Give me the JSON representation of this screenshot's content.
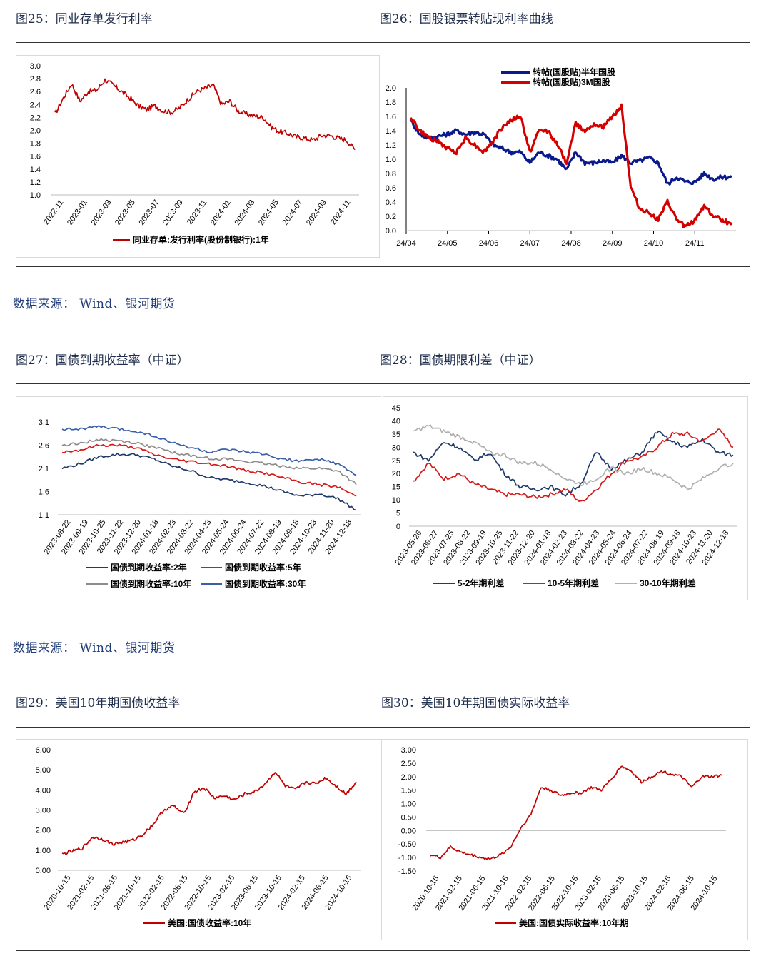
{
  "titles": {
    "fig25": "图25：同业存单发行利率",
    "fig26": "图26：国股银票转贴现利率曲线",
    "fig27": "图27：国债到期收益率（中证）",
    "fig28": "图28：国债期限利差（中证）",
    "fig29": "图29：美国10年期国债收益率",
    "fig30": "图30：美国10年期国债实际收益率"
  },
  "sources": {
    "s1": "数据来源：  Wind、银河期货",
    "s2": "数据来源：  Wind、银河期货"
  },
  "chart_data": [
    {
      "id": "fig25",
      "type": "line",
      "yticks": [
        "3.0",
        "2.8",
        "2.6",
        "2.4",
        "2.2",
        "2.0",
        "1.8",
        "1.6",
        "1.4",
        "1.2",
        "1.0"
      ],
      "ylim": [
        1.0,
        3.0
      ],
      "xticks": [
        "2022-11",
        "2023-01",
        "2023-03",
        "2023-05",
        "2023-07",
        "2023-09",
        "2023-11",
        "2024-01",
        "2024-03",
        "2024-05",
        "2024-07",
        "2024-09",
        "2024-11"
      ],
      "series": [
        {
          "name": "同业存单:发行利率(股份制银行):1年",
          "color": "#c00000",
          "values": [
            2.25,
            2.5,
            2.72,
            2.45,
            2.6,
            2.62,
            2.78,
            2.7,
            2.6,
            2.5,
            2.38,
            2.32,
            2.38,
            2.3,
            2.28,
            2.35,
            2.48,
            2.6,
            2.65,
            2.7,
            2.4,
            2.45,
            2.3,
            2.25,
            2.22,
            2.2,
            2.05,
            1.98,
            1.95,
            1.9,
            1.88,
            1.85,
            1.92,
            1.92,
            1.88,
            1.85,
            1.7
          ]
        }
      ],
      "grid": false,
      "legend": "bottom"
    },
    {
      "id": "fig26",
      "type": "line",
      "yticks": [
        "2.0",
        "1.8",
        "1.6",
        "1.4",
        "1.2",
        "1.0",
        "0.8",
        "0.6",
        "0.4",
        "0.2",
        "0.0"
      ],
      "ylim": [
        0.0,
        2.0
      ],
      "xticks": [
        "24/04",
        "24/05",
        "24/06",
        "24/07",
        "24/08",
        "24/09",
        "24/10",
        "24/11"
      ],
      "series": [
        {
          "name": "转帖(国股贴)半年国股",
          "color": "#0a1a8c",
          "values": [
            1.55,
            1.35,
            1.3,
            1.32,
            1.35,
            1.4,
            1.35,
            1.38,
            1.35,
            1.2,
            1.15,
            1.1,
            1.1,
            0.95,
            1.1,
            1.05,
            1.0,
            0.85,
            1.1,
            0.95,
            0.95,
            0.98,
            0.95,
            1.05,
            0.95,
            0.98,
            1.02,
            0.95,
            0.65,
            0.75,
            0.68,
            0.68,
            0.8,
            0.72,
            0.75,
            0.75
          ]
        },
        {
          "name": "转帖(国股贴)3M国股",
          "color": "#d40000",
          "values": [
            1.6,
            1.4,
            1.3,
            1.25,
            1.15,
            1.1,
            1.3,
            1.2,
            1.1,
            1.25,
            1.45,
            1.55,
            1.6,
            1.1,
            1.4,
            1.4,
            1.2,
            0.95,
            1.5,
            1.4,
            1.5,
            1.45,
            1.6,
            1.75,
            0.6,
            0.3,
            0.25,
            0.15,
            0.4,
            0.15,
            0.05,
            0.15,
            0.35,
            0.2,
            0.15,
            0.08
          ]
        }
      ],
      "grid": false,
      "legend": "top"
    },
    {
      "id": "fig27",
      "type": "line",
      "yticks": [
        "3.1",
        "2.6",
        "2.1",
        "1.6",
        "1.1"
      ],
      "ylim": [
        1.1,
        3.1
      ],
      "xticks": [
        "2023-08-22",
        "2023-09-19",
        "2023-10-25",
        "2023-11-22",
        "2023-12-20",
        "2024-01-18",
        "2024-02-23",
        "2024-03-22",
        "2024-04-23",
        "2024-05-24",
        "2024-06-24",
        "2024-07-22",
        "2024-08-19",
        "2024-09-18",
        "2024-10-23",
        "2024-11-20",
        "2024-12-18"
      ],
      "series": [
        {
          "name": "国债到期收益率:2年",
          "color": "#1f3a68",
          "values": [
            2.1,
            2.2,
            2.35,
            2.4,
            2.4,
            2.3,
            2.15,
            2.05,
            1.9,
            1.85,
            1.8,
            1.72,
            1.6,
            1.5,
            1.55,
            1.45,
            1.2
          ]
        },
        {
          "name": "国债到期收益率:5年",
          "color": "#d41a1a",
          "values": [
            2.45,
            2.5,
            2.6,
            2.6,
            2.55,
            2.4,
            2.3,
            2.25,
            2.2,
            2.15,
            2.05,
            2.0,
            1.9,
            1.8,
            1.75,
            1.7,
            1.5
          ]
        },
        {
          "name": "国债到期收益率:10年",
          "color": "#8c8c8c",
          "values": [
            2.6,
            2.65,
            2.72,
            2.7,
            2.65,
            2.55,
            2.45,
            2.38,
            2.32,
            2.3,
            2.25,
            2.2,
            2.15,
            2.1,
            2.1,
            2.05,
            1.75
          ]
        },
        {
          "name": "国债到期收益率:30年",
          "color": "#3a5fa8",
          "values": [
            2.95,
            2.95,
            3.0,
            2.95,
            2.9,
            2.8,
            2.65,
            2.55,
            2.45,
            2.5,
            2.45,
            2.4,
            2.3,
            2.25,
            2.3,
            2.2,
            1.95
          ]
        }
      ],
      "grid": false,
      "legend": "bottom"
    },
    {
      "id": "fig28",
      "type": "line",
      "yticks": [
        "45",
        "40",
        "35",
        "30",
        "25",
        "20",
        "15",
        "10",
        "5",
        "0"
      ],
      "ylim": [
        0,
        45
      ],
      "xticks": [
        "2023-05-26",
        "2023-06-27",
        "2023-07-25",
        "2023-08-22",
        "2023-09-19",
        "2023-10-25",
        "2023-11-22",
        "2023-12-20",
        "2024-01-18",
        "2024-02-23",
        "2024-03-22",
        "2024-04-23",
        "2024-05-24",
        "2024-06-24",
        "2024-07-22",
        "2024-08-19",
        "2024-09-18",
        "2024-10-23",
        "2024-11-20",
        "2024-12-18"
      ],
      "series": [
        {
          "name": "5-2年期利差",
          "color": "#1f3a68",
          "values": [
            28,
            25,
            32,
            30,
            25,
            28,
            20,
            15,
            14,
            15,
            12,
            16,
            28,
            22,
            25,
            28,
            36,
            32,
            30,
            33,
            28,
            27
          ]
        },
        {
          "name": "10-5年期利差",
          "color": "#d41a1a",
          "values": [
            17,
            24,
            18,
            20,
            16,
            14,
            12,
            12,
            11,
            12,
            14,
            9,
            14,
            20,
            25,
            26,
            30,
            35,
            35,
            32,
            37,
            30
          ]
        },
        {
          "name": "30-10年期利差",
          "color": "#b0b0b0",
          "values": [
            36,
            38,
            36,
            34,
            32,
            28,
            27,
            24,
            24,
            22,
            18,
            16,
            18,
            22,
            20,
            22,
            20,
            18,
            14,
            18,
            22,
            24
          ]
        }
      ],
      "grid": false,
      "legend": "bottom"
    },
    {
      "id": "fig29",
      "type": "line",
      "yticks": [
        "6.00",
        "5.00",
        "4.00",
        "3.00",
        "2.00",
        "1.00",
        "0.00"
      ],
      "ylim": [
        0,
        6
      ],
      "xticks": [
        "2020-10-15",
        "2021-02-15",
        "2021-06-15",
        "2021-10-15",
        "2022-02-15",
        "2022-06-15",
        "2022-10-15",
        "2023-02-15",
        "2023-06-15",
        "2023-10-15",
        "2024-02-15",
        "2024-06-15",
        "2024-10-15"
      ],
      "series": [
        {
          "name": "美国:国债收益率:10年",
          "color": "#c00000",
          "values": [
            0.8,
            0.95,
            1.1,
            1.65,
            1.55,
            1.3,
            1.4,
            1.5,
            1.8,
            2.3,
            3.0,
            3.2,
            2.8,
            3.9,
            4.1,
            3.6,
            3.7,
            3.5,
            3.8,
            3.9,
            4.3,
            4.9,
            4.2,
            4.0,
            4.4,
            4.3,
            4.6,
            4.2,
            3.8,
            4.4
          ]
        }
      ],
      "grid": false,
      "legend": "bottom"
    },
    {
      "id": "fig30",
      "type": "line",
      "yticks": [
        "3.00",
        "2.50",
        "2.00",
        "1.50",
        "1.00",
        "0.50",
        "0.00",
        "-0.50",
        "-1.00",
        "-1.50"
      ],
      "ylim": [
        -1.5,
        3.0
      ],
      "xticks": [
        "2020-10-15",
        "2021-02-15",
        "2021-06-15",
        "2021-10-15",
        "2022-02-15",
        "2022-06-15",
        "2022-10-15",
        "2023-02-15",
        "2023-06-15",
        "2023-10-15",
        "2024-02-15",
        "2024-06-15",
        "2024-10-15"
      ],
      "series": [
        {
          "name": "美国:国债实际收益率:10年期",
          "color": "#c00000",
          "values": [
            -0.9,
            -1.0,
            -0.6,
            -0.8,
            -0.9,
            -1.0,
            -1.05,
            -0.9,
            -0.6,
            0.1,
            0.6,
            1.6,
            1.5,
            1.3,
            1.4,
            1.4,
            1.6,
            1.5,
            1.9,
            2.4,
            2.2,
            1.8,
            2.0,
            2.2,
            2.1,
            2.0,
            1.6,
            2.0,
            2.0,
            2.05
          ]
        }
      ],
      "grid": false,
      "legend": "bottom"
    }
  ]
}
